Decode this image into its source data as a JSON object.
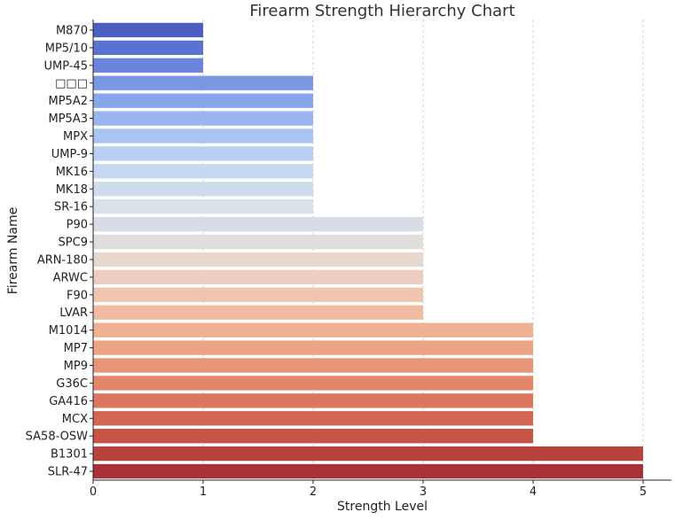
{
  "chart_data": {
    "type": "bar",
    "orientation": "horizontal",
    "title": "Firearm Strength Hierarchy Chart",
    "xlabel": "Strength Level",
    "ylabel": "Firearm Name",
    "xlim": [
      0,
      5
    ],
    "x_ticks": [
      "0",
      "1",
      "2",
      "3",
      "4",
      "5"
    ],
    "grid": "vertical dashed",
    "categories": [
      "M870",
      "MP5/10",
      "UMP-45",
      "□□□",
      "MP5A2",
      "MP5A3",
      "MPX",
      "UMP-9",
      "MK16",
      "MK18",
      "SR-16",
      "P90",
      "SPC9",
      "ARN-180",
      "ARWC",
      "F90",
      "LVAR",
      "M1014",
      "MP7",
      "MP9",
      "G36C",
      "GA416",
      "MCX",
      "SA58-OSW",
      "B1301",
      "SLR-47"
    ],
    "values": [
      1,
      1,
      1,
      2,
      2,
      2,
      2,
      2,
      2,
      2,
      2,
      3,
      3,
      3,
      3,
      3,
      3,
      4,
      4,
      4,
      4,
      4,
      4,
      4,
      5,
      5
    ],
    "colors": [
      "#4a5fc1",
      "#5b73d0",
      "#6b85db",
      "#7b96e3",
      "#8aa6ea",
      "#9bb5ef",
      "#aac3f2",
      "#b9cff3",
      "#c6d8f1",
      "#d0dcee",
      "#d9e0e8",
      "#d8dce4",
      "#dfdedd",
      "#e6d8ce",
      "#eccec0",
      "#f0c5b0",
      "#f1bba2",
      "#efb094",
      "#eca386",
      "#e89478",
      "#e3856b",
      "#dc765e",
      "#d26653",
      "#c65448",
      "#b8433e",
      "#a93036"
    ]
  }
}
